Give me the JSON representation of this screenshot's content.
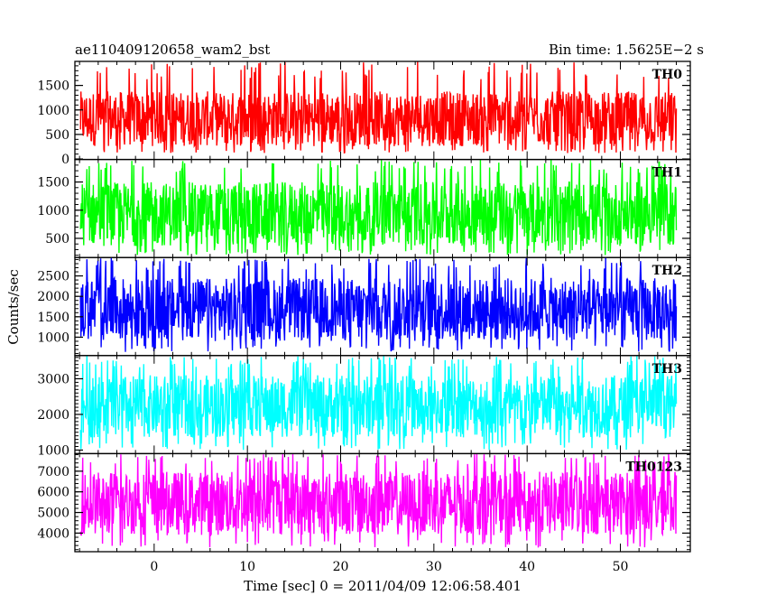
{
  "chart_data": {
    "type": "line",
    "title": "ae110409120658_wam2_bst",
    "subtitle": "Bin time: 1.5625E−2 s",
    "xlabel": "Time [sec] 0 = 2011/04/09 12:06:58.401",
    "ylabel": "Counts/sec",
    "xlim": [
      -8.5,
      57.5
    ],
    "x_ticks": [
      0,
      10,
      20,
      30,
      40,
      50
    ],
    "x_range_of_data": [
      -7.9,
      56
    ],
    "bin_time_s": 0.015625,
    "panels": [
      {
        "label": "TH0",
        "color": "#ff0000",
        "ylim": [
          -10,
          1990
        ],
        "y_ticks": [
          0,
          500,
          1000,
          1500
        ],
        "mean": 830,
        "band_low": 260,
        "band_high": 1380,
        "spike_min": 120,
        "spike_max": 1990
      },
      {
        "label": "TH1",
        "color": "#00ff00",
        "ylim": [
          160,
          1900
        ],
        "y_ticks": [
          500,
          1000,
          1500
        ],
        "mean": 920,
        "band_low": 360,
        "band_high": 1500,
        "spike_min": 200,
        "spike_max": 1900
      },
      {
        "label": "TH2",
        "color": "#0000ff",
        "ylim": [
          550,
          2950
        ],
        "y_ticks": [
          1000,
          1500,
          2000,
          2500
        ],
        "mean": 1650,
        "band_low": 900,
        "band_high": 2450,
        "spike_min": 640,
        "spike_max": 2950
      },
      {
        "label": "TH3",
        "color": "#00ffff",
        "ylim": [
          900,
          3650
        ],
        "y_ticks": [
          1000,
          2000,
          3000
        ],
        "mean": 2200,
        "band_low": 1350,
        "band_high": 3100,
        "spike_min": 1000,
        "spike_max": 3650
      },
      {
        "label": "TH0123",
        "color": "#ff00ff",
        "ylim": [
          3100,
          7850
        ],
        "y_ticks": [
          4000,
          5000,
          6000,
          7000
        ],
        "mean": 5400,
        "band_low": 3900,
        "band_high": 7000,
        "spike_min": 3300,
        "spike_max": 7850
      }
    ]
  }
}
